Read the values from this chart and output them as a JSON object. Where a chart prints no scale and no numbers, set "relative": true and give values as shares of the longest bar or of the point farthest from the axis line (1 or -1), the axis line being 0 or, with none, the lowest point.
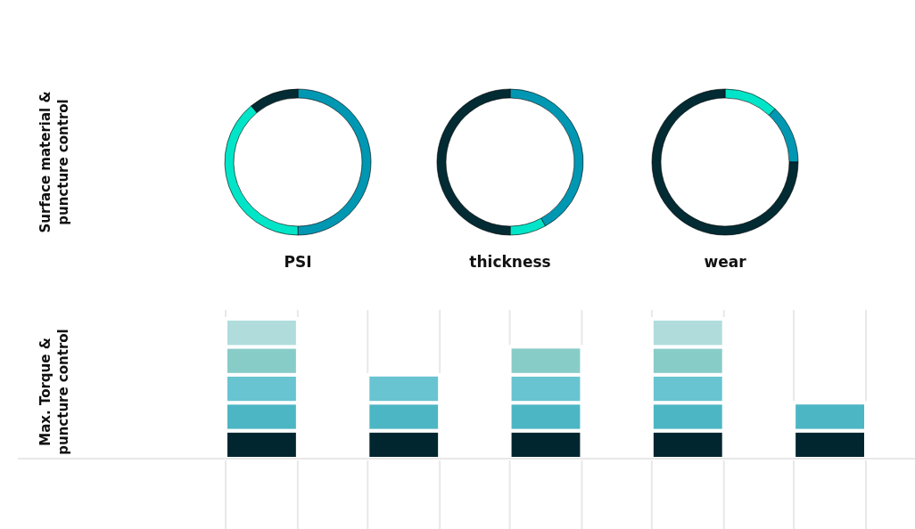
{
  "chart_data": [
    {
      "type": "donut",
      "title": "PSI",
      "ylabel": "Surface material & puncture control",
      "categories": [
        null,
        null,
        null
      ],
      "values": [
        50,
        39,
        11
      ],
      "colors": [
        "#0097b2",
        "#00e5c8",
        "#022b33"
      ]
    },
    {
      "type": "donut",
      "title": "thickness",
      "categories": [
        null,
        null,
        null
      ],
      "values": [
        42,
        8,
        50
      ],
      "colors": [
        "#0097b2",
        "#00e5c8",
        "#022b33"
      ]
    },
    {
      "type": "donut",
      "title": "wear",
      "categories": [
        null,
        null,
        null
      ],
      "values": [
        12,
        13,
        75
      ],
      "colors": [
        "#00e5c8",
        "#0097b2",
        "#022b33"
      ]
    },
    {
      "type": "bar",
      "stacked": true,
      "relative": true,
      "grid": "x",
      "ylabel": "Max. Torque & puncture control",
      "categories": [
        null,
        null,
        null,
        null,
        null
      ],
      "series": [
        {
          "color": "#022630",
          "values": [
            0.2,
            0.2,
            0.2,
            0.2,
            0.2
          ]
        },
        {
          "color": "#4db6c4",
          "values": [
            0.2,
            0.2,
            0.2,
            0.2,
            0.2
          ]
        },
        {
          "color": "#67c4d0",
          "values": [
            0.2,
            0.2,
            0.2,
            0.2,
            0
          ]
        },
        {
          "color": "#88ccc8",
          "values": [
            0.2,
            0,
            0.2,
            0.2,
            0
          ]
        },
        {
          "color": "#b0dcdc",
          "values": [
            0.2,
            0,
            0,
            0.2,
            0
          ]
        }
      ]
    }
  ]
}
